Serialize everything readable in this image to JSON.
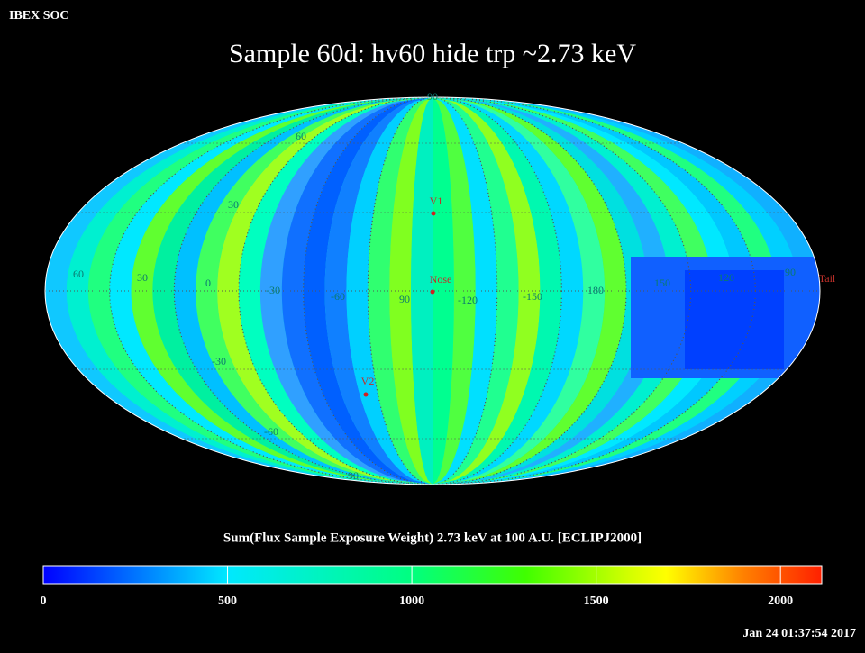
{
  "header": {
    "org": "IBEX SOC",
    "timestamp": "Jan 24 01:37:54 2017"
  },
  "title": "Sample 60d: hv60 hide trp ~2.73 keV",
  "map": {
    "latitude_labels": [
      "90",
      "60",
      "30",
      "-30",
      "-60",
      "90"
    ],
    "longitude_labels": [
      "60",
      "30",
      "0",
      "-30",
      "-60",
      "90",
      "-120",
      "-150",
      "180",
      "150",
      "120",
      "90"
    ],
    "markers": [
      {
        "label": "V1"
      },
      {
        "label": "Nose"
      },
      {
        "label": "V2"
      },
      {
        "label": "Tail"
      }
    ]
  },
  "colorbar": {
    "label": "Sum(Flux Sample Exposure Weight)  2.73 keV at 100 A.U. [ECLIPJ2000]",
    "range": [
      0,
      2112
    ],
    "ticks": [
      0,
      500,
      1000,
      1500,
      2000
    ]
  }
}
